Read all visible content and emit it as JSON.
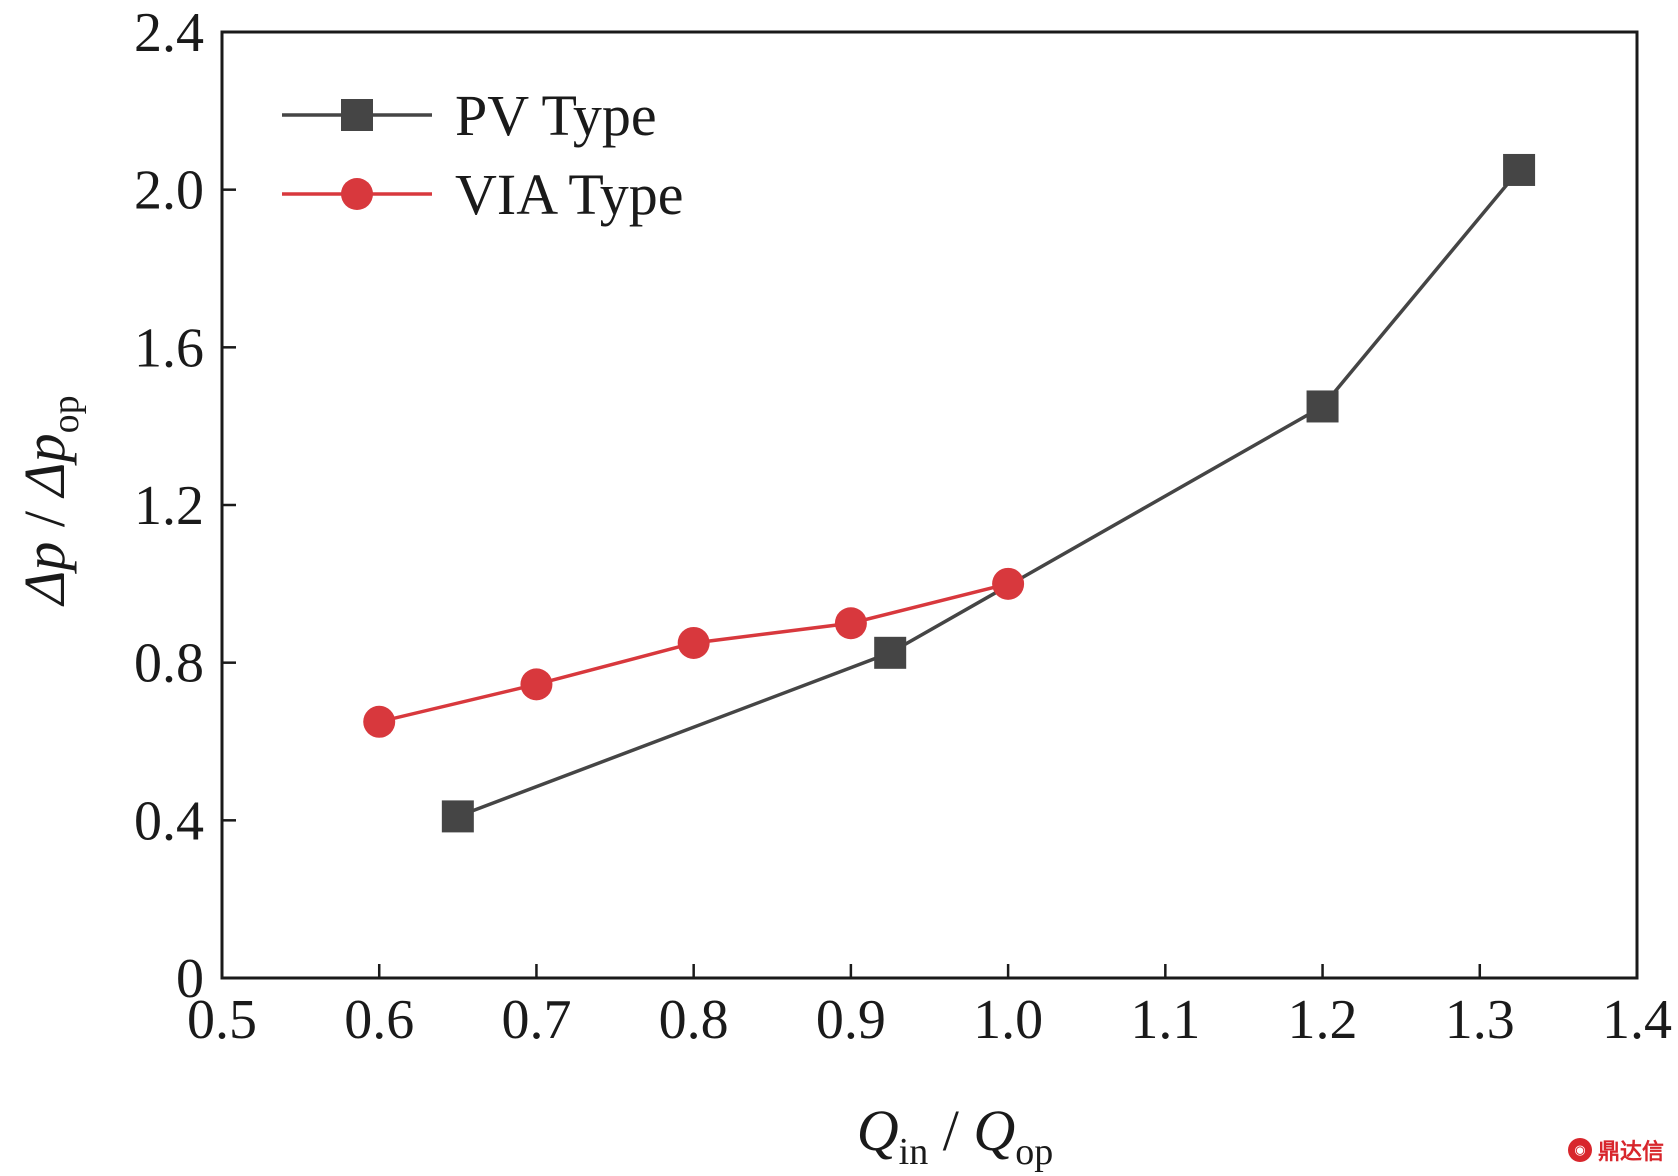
{
  "chart_data": {
    "type": "line",
    "xlabel": {
      "main": "Q",
      "sub": "in",
      "sep": " / ",
      "main2": "Q",
      "sub2": "op"
    },
    "ylabel": {
      "main": "Δp",
      "sep": " / ",
      "main2": "Δp",
      "sub2": "op"
    },
    "xlim": [
      0.5,
      1.4
    ],
    "ylim": [
      0,
      2.4
    ],
    "x_ticks": [
      0.5,
      0.6,
      0.7,
      0.8,
      0.9,
      1.0,
      1.1,
      1.2,
      1.3,
      1.4
    ],
    "x_tick_labels": [
      "0.5",
      "0.6",
      "0.7",
      "0.8",
      "0.9",
      "1.0",
      "1.1",
      "1.2",
      "1.3",
      "1.4"
    ],
    "y_ticks": [
      0,
      0.4,
      0.8,
      1.2,
      1.6,
      2.0,
      2.4
    ],
    "y_tick_labels": [
      "0",
      "0.4",
      "0.8",
      "1.2",
      "1.6",
      "2.0",
      "2.4"
    ],
    "legend_position": "top-left",
    "series": [
      {
        "name": "PV Type",
        "marker": "square",
        "color": "#454545",
        "x": [
          0.65,
          0.925,
          1.2,
          1.325
        ],
        "y": [
          0.41,
          0.825,
          1.45,
          2.05
        ]
      },
      {
        "name": "VIA Type",
        "marker": "circle",
        "color": "#d8383d",
        "x": [
          0.6,
          0.7,
          0.8,
          0.9,
          1.0
        ],
        "y": [
          0.65,
          0.745,
          0.85,
          0.9,
          1.0
        ]
      }
    ]
  },
  "watermark": {
    "text": "鼎达信"
  }
}
